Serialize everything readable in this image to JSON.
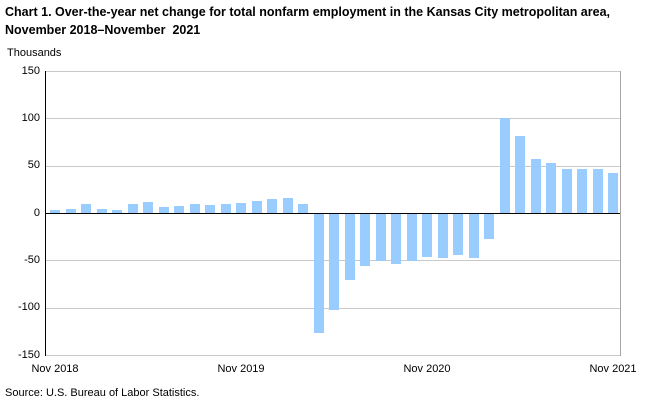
{
  "title": "Chart 1. Over-the-year net change for total nonfarm employment in the Kansas City metropolitan area, November 2018–November  2021",
  "y_axis_unit_label": "Thousands",
  "source": "Source: U.S. Bureau of Labor Statistics.",
  "colors": {
    "bar": "#99CCFF",
    "gridline": "#c9c9c9",
    "frame": "#a6a6a6",
    "zero_line": "#000000",
    "text": "#000000"
  },
  "chart_data": {
    "type": "bar",
    "title": "Chart 1. Over-the-year net change for total nonfarm employment in the Kansas City metropolitan area, November 2018–November 2021",
    "xlabel": "",
    "ylabel": "Thousands",
    "ylim": [
      -150,
      150
    ],
    "y_ticks": [
      150,
      100,
      50,
      0,
      -50,
      -100,
      -150
    ],
    "grid": true,
    "legend": false,
    "x_tick_labels": [
      "Nov 2018",
      "Nov 2019",
      "Nov 2020",
      "Nov 2021"
    ],
    "x_tick_positions": [
      0,
      12,
      24,
      36
    ],
    "categories": [
      "Nov 2018",
      "Dec 2018",
      "Jan 2019",
      "Feb 2019",
      "Mar 2019",
      "Apr 2019",
      "May 2019",
      "Jun 2019",
      "Jul 2019",
      "Aug 2019",
      "Sep 2019",
      "Oct 2019",
      "Nov 2019",
      "Dec 2019",
      "Jan 2020",
      "Feb 2020",
      "Mar 2020",
      "Apr 2020",
      "May 2020",
      "Jun 2020",
      "Jul 2020",
      "Aug 2020",
      "Sep 2020",
      "Oct 2020",
      "Nov 2020",
      "Dec 2020",
      "Jan 2021",
      "Feb 2021",
      "Mar 2021",
      "Apr 2021",
      "May 2021",
      "Jun 2021",
      "Jul 2021",
      "Aug 2021",
      "Sep 2021",
      "Oct 2021",
      "Nov 2021"
    ],
    "values": [
      3,
      4,
      10,
      4,
      3,
      10,
      12,
      6,
      7,
      9,
      8,
      10,
      11,
      13,
      15,
      16,
      10,
      -127,
      -102,
      -71,
      -56,
      -51,
      -54,
      -51,
      -47,
      -48,
      -44,
      -48,
      -27,
      100,
      81,
      57,
      53,
      47,
      47,
      46,
      42
    ]
  }
}
